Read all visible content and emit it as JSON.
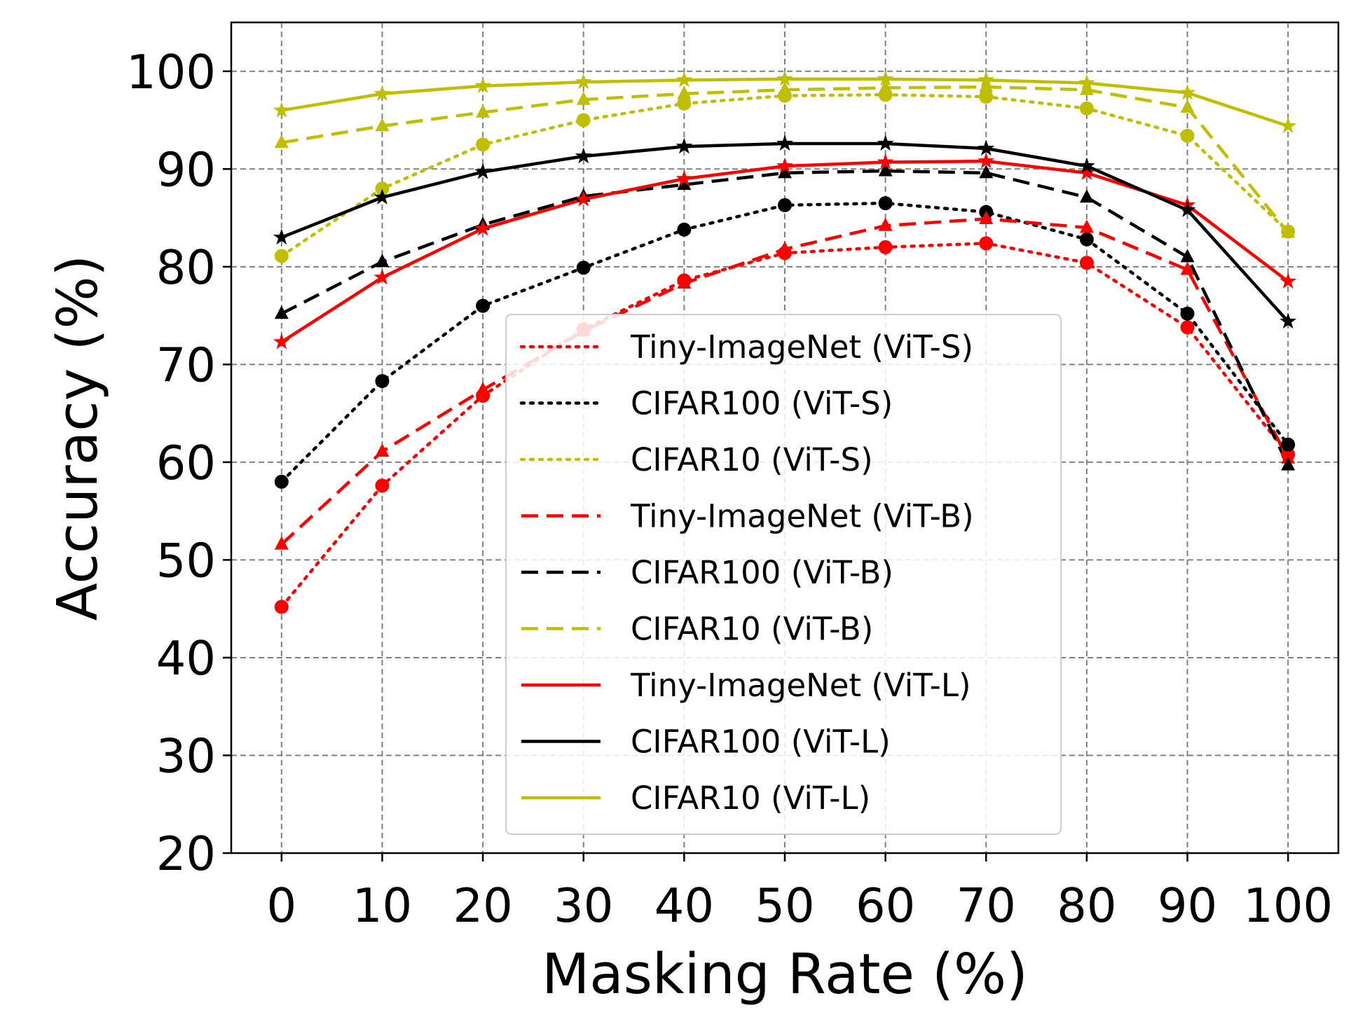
{
  "chart_data": {
    "type": "line",
    "title": "",
    "xlabel": "Masking Rate (%)",
    "ylabel": "Accuracy (%)",
    "x": [
      0,
      10,
      20,
      30,
      40,
      50,
      60,
      70,
      80,
      90,
      100
    ],
    "x_ticks": [
      "0",
      "10",
      "20",
      "30",
      "40",
      "50",
      "60",
      "70",
      "80",
      "90",
      "100"
    ],
    "y_ticks": [
      "20",
      "30",
      "40",
      "50",
      "60",
      "70",
      "80",
      "90",
      "100"
    ],
    "xlim": [
      -5,
      105
    ],
    "ylim": [
      20,
      105
    ],
    "grid": true,
    "legend_position": "center",
    "series": [
      {
        "name": "Tiny-ImageNet (ViT-S)",
        "color": "#ff0000",
        "linestyle": "dotted",
        "marker": "circle",
        "values": [
          45.2,
          57.6,
          66.8,
          73.6,
          78.6,
          81.4,
          82.0,
          82.4,
          80.4,
          73.8,
          60.8
        ]
      },
      {
        "name": "CIFAR100 (ViT-S)",
        "color": "#000000",
        "linestyle": "dotted",
        "marker": "circle",
        "values": [
          58.0,
          68.3,
          76.0,
          79.9,
          83.8,
          86.3,
          86.5,
          85.6,
          82.8,
          75.2,
          61.8
        ]
      },
      {
        "name": "CIFAR10 (ViT-S)",
        "color": "#bfbf00",
        "linestyle": "dotted",
        "marker": "circle",
        "values": [
          81.1,
          88.0,
          92.5,
          95.0,
          96.7,
          97.5,
          97.6,
          97.4,
          96.2,
          93.4,
          83.6
        ]
      },
      {
        "name": "Tiny-ImageNet (ViT-B)",
        "color": "#ff0000",
        "linestyle": "dashed",
        "marker": "triangle",
        "values": [
          51.6,
          61.1,
          67.4,
          73.4,
          78.3,
          81.8,
          84.2,
          84.9,
          84.0,
          79.7,
          60.4
        ]
      },
      {
        "name": "CIFAR100 (ViT-B)",
        "color": "#000000",
        "linestyle": "dashed",
        "marker": "triangle",
        "values": [
          75.2,
          80.5,
          84.3,
          87.2,
          88.4,
          89.6,
          89.8,
          89.6,
          87.1,
          81.0,
          59.7
        ]
      },
      {
        "name": "CIFAR10 (ViT-B)",
        "color": "#bfbf00",
        "linestyle": "dashed",
        "marker": "triangle",
        "values": [
          92.7,
          94.4,
          95.8,
          97.1,
          97.7,
          98.1,
          98.3,
          98.4,
          98.1,
          96.3,
          83.5
        ]
      },
      {
        "name": "Tiny-ImageNet (ViT-L)",
        "color": "#ff0000",
        "linestyle": "solid",
        "marker": "star",
        "values": [
          72.3,
          78.9,
          83.9,
          86.9,
          89.0,
          90.3,
          90.7,
          90.8,
          89.6,
          86.3,
          78.5
        ]
      },
      {
        "name": "CIFAR100 (ViT-L)",
        "color": "#000000",
        "linestyle": "solid",
        "marker": "star",
        "values": [
          83.0,
          87.1,
          89.7,
          91.3,
          92.3,
          92.6,
          92.6,
          92.1,
          90.3,
          85.8,
          74.4
        ]
      },
      {
        "name": "CIFAR10 (ViT-L)",
        "color": "#bfbf00",
        "linestyle": "solid",
        "marker": "star",
        "values": [
          96.0,
          97.7,
          98.5,
          98.9,
          99.1,
          99.2,
          99.2,
          99.1,
          98.8,
          97.8,
          94.4
        ]
      }
    ]
  }
}
